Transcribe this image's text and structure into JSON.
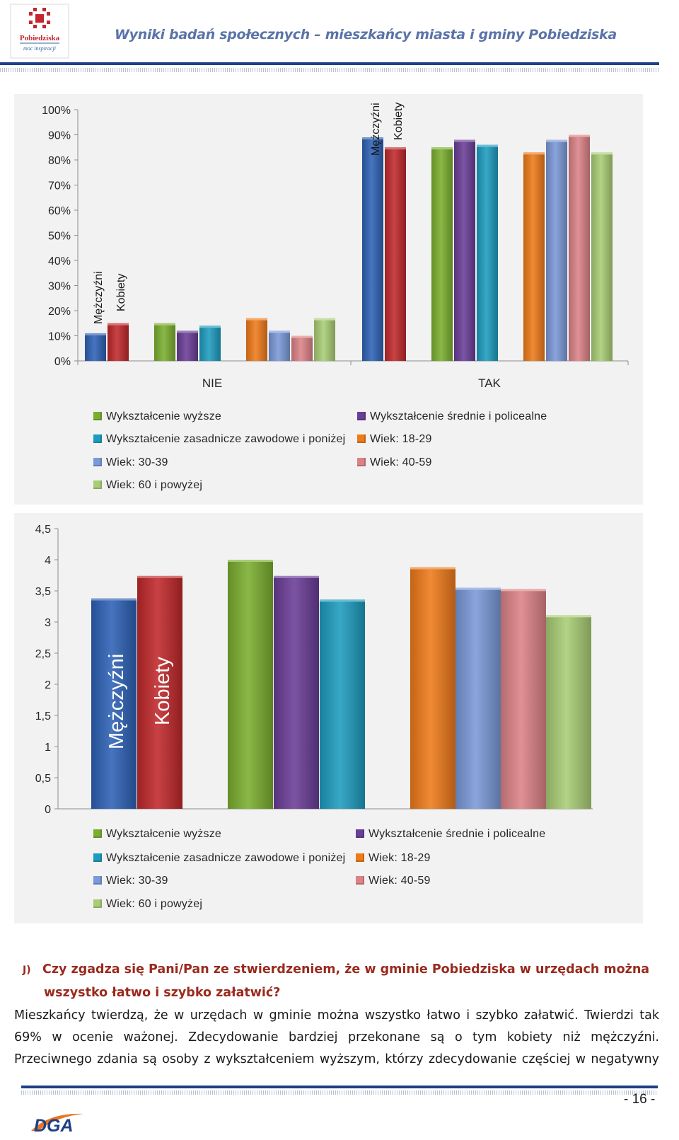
{
  "header": {
    "title": "Wyniki badań społecznych – mieszkańcy miasta i gminy Pobiedziska",
    "logo_name": "Pobiedziska",
    "logo_tagline": "moc inspiracji"
  },
  "colors": {
    "men": "#2d61b5",
    "women": "#c0282b",
    "higher": "#7aae2e",
    "secondary": "#6a3d97",
    "vocational": "#1d9cbf",
    "age1829": "#ee7a1a",
    "age3039": "#7a99d8",
    "age4059": "#dc8286",
    "age60": "#a9cd74"
  },
  "chart_data": [
    {
      "type": "bar",
      "title": "",
      "categories": [
        "NIE",
        "TAK"
      ],
      "series": [
        {
          "name": "Mężczyźni",
          "values": [
            11,
            89
          ]
        },
        {
          "name": "Kobiety",
          "values": [
            15,
            85
          ]
        },
        {
          "name": "Wykształcenie wyższe",
          "values": [
            15,
            85
          ]
        },
        {
          "name": "Wykształcenie średnie i policealne",
          "values": [
            12,
            88
          ]
        },
        {
          "name": "Wykształcenie zasadnicze zawodowe i poniżej",
          "values": [
            14,
            86
          ]
        },
        {
          "name": "Wiek: 18-29",
          "values": [
            17,
            83
          ]
        },
        {
          "name": "Wiek: 30-39",
          "values": [
            12,
            88
          ]
        },
        {
          "name": "Wiek: 40-59",
          "values": [
            10,
            90
          ]
        },
        {
          "name": "Wiek: 60 i powyżej",
          "values": [
            17,
            83
          ]
        }
      ],
      "yticks": [
        "0%",
        "10%",
        "20%",
        "30%",
        "40%",
        "50%",
        "60%",
        "70%",
        "80%",
        "90%",
        "100%"
      ],
      "ylim": [
        0,
        100
      ],
      "inbar_labels": [
        "Mężczyźni",
        "Kobiety"
      ],
      "legend": [
        "Wykształcenie wyższe",
        "Wykształcenie średnie i policealne",
        "Wykształcenie zasadnicze zawodowe i poniżej",
        "Wiek: 18-29",
        "Wiek: 30-39",
        "Wiek: 40-59",
        "Wiek: 60 i powyżej"
      ]
    },
    {
      "type": "bar",
      "title": "",
      "categories": [
        ""
      ],
      "series": [
        {
          "name": "Mężczyźni",
          "values": [
            3.38
          ]
        },
        {
          "name": "Kobiety",
          "values": [
            3.74
          ]
        },
        {
          "name": "Wykształcenie wyższe",
          "values": [
            4.0
          ]
        },
        {
          "name": "Wykształcenie średnie i policealne",
          "values": [
            3.74
          ]
        },
        {
          "name": "Wykształcenie zasadnicze zawodowe i poniżej",
          "values": [
            3.36
          ]
        },
        {
          "name": "Wiek: 18-29",
          "values": [
            3.88
          ]
        },
        {
          "name": "Wiek: 30-39",
          "values": [
            3.55
          ]
        },
        {
          "name": "Wiek: 40-59",
          "values": [
            3.53
          ]
        },
        {
          "name": "Wiek: 60 i powyżej",
          "values": [
            3.11
          ]
        }
      ],
      "yticks": [
        "0",
        "0,5",
        "1",
        "1,5",
        "2",
        "2,5",
        "3",
        "3,5",
        "4",
        "4,5"
      ],
      "ylim": [
        0,
        4.5
      ],
      "inbar_labels": [
        "Mężczyźni",
        "Kobiety"
      ],
      "legend": [
        "Wykształcenie wyższe",
        "Wykształcenie średnie i policealne",
        "Wykształcenie zasadnicze zawodowe i poniżej",
        "Wiek: 18-29",
        "Wiek: 30-39",
        "Wiek: 40-59",
        "Wiek: 60 i powyżej"
      ]
    }
  ],
  "question": {
    "label": "J)",
    "line1": "Czy zgadza się Pani/Pan ze stwierdzeniem, że w gminie Pobiedziska w urzędach można",
    "line2": "wszystko łatwo i szybko załatwić?"
  },
  "paragraph": {
    "line1": "Mieszkańcy twierdzą, że w urzędach w gminie można wszystko łatwo i szybko załatwić. Twierdzi tak",
    "line2": "69% w ocenie ważonej. Zdecydowanie bardziej przekonane są o tym kobiety niż mężczyźni.",
    "line3": "Przeciwnego zdania są osoby z wykształceniem wyższym, którzy zdecydowanie częściej w negatywny"
  },
  "footer": {
    "page_number": "- 16 -",
    "brand": "DGA"
  }
}
